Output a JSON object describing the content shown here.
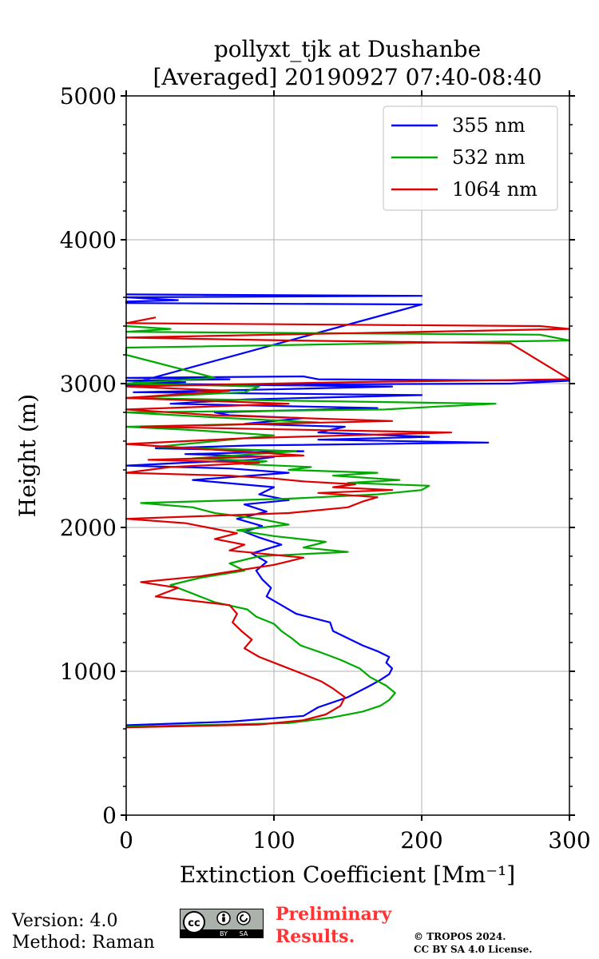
{
  "chart_data": {
    "type": "line",
    "title": "pollyxt_tjk at Dushanbe",
    "subtitle": "[Averaged] 20190927 07:40-08:40",
    "xlabel": "Extinction Coefficient [Mm⁻¹]",
    "ylabel": "Height (m)",
    "xlim": [
      0,
      300
    ],
    "ylim": [
      0,
      5000
    ],
    "xticks": [
      0,
      100,
      200,
      300
    ],
    "yticks": [
      0,
      1000,
      2000,
      3000,
      4000,
      5000
    ],
    "grid": true,
    "legend_position": "top-right",
    "series": [
      {
        "name": "355 nm",
        "color": "#0000ff",
        "x": [
          0,
          70,
          120,
          130,
          150,
          165,
          172,
          178,
          180,
          176,
          178,
          170,
          160,
          150,
          140,
          138,
          115,
          105,
          95,
          98,
          92,
          88,
          95,
          85,
          105,
          90,
          80,
          92,
          75,
          95,
          80,
          110,
          90,
          100,
          45,
          110,
          70,
          0,
          40,
          85,
          100,
          40,
          120,
          20,
          85,
          245,
          130,
          205,
          130,
          148,
          80,
          120,
          70,
          60,
          170,
          30,
          80,
          200,
          5,
          100,
          180,
          5,
          40,
          0,
          70,
          0,
          120,
          130,
          300,
          260,
          0,
          200,
          0,
          0,
          35,
          0,
          200,
          0
        ],
        "y": [
          625,
          650,
          690,
          750,
          820,
          900,
          940,
          980,
          1020,
          1060,
          1100,
          1140,
          1180,
          1230,
          1280,
          1340,
          1400,
          1460,
          1520,
          1580,
          1640,
          1700,
          1760,
          1820,
          1880,
          1930,
          1970,
          2010,
          2060,
          2110,
          2160,
          2190,
          2230,
          2280,
          2330,
          2380,
          2410,
          2430,
          2450,
          2470,
          2490,
          2510,
          2530,
          2550,
          2570,
          2590,
          2610,
          2630,
          2660,
          2700,
          2720,
          2760,
          2780,
          2800,
          2830,
          2860,
          2890,
          2920,
          2940,
          2960,
          2980,
          3000,
          3010,
          3020,
          3030,
          3040,
          3050,
          3030,
          3020,
          3000,
          2990,
          3550,
          3560,
          3570,
          3580,
          3600,
          3610,
          3620
        ]
      },
      {
        "name": "532 nm",
        "color": "#00aa00",
        "x": [
          0,
          110,
          140,
          160,
          172,
          178,
          182,
          176,
          165,
          158,
          145,
          132,
          118,
          112,
          105,
          100,
          88,
          82,
          60,
          45,
          30,
          50,
          80,
          70,
          90,
          150,
          120,
          135,
          100,
          75,
          110,
          90,
          60,
          45,
          10,
          110,
          170,
          200,
          205,
          150,
          185,
          140,
          170,
          110,
          125,
          80,
          95,
          45,
          115,
          20,
          60,
          100,
          40,
          0,
          130,
          70,
          0,
          175,
          210,
          250,
          120,
          0,
          80,
          90,
          0,
          30,
          60,
          0,
          0,
          300,
          280,
          0,
          30,
          0
        ],
        "y": [
          615,
          640,
          680,
          720,
          760,
          800,
          850,
          900,
          960,
          1020,
          1080,
          1130,
          1180,
          1230,
          1280,
          1330,
          1380,
          1430,
          1480,
          1540,
          1600,
          1650,
          1700,
          1750,
          1800,
          1830,
          1860,
          1900,
          1940,
          1980,
          2020,
          2060,
          2100,
          2140,
          2170,
          2200,
          2230,
          2260,
          2290,
          2310,
          2330,
          2360,
          2380,
          2400,
          2420,
          2440,
          2460,
          2480,
          2530,
          2560,
          2600,
          2640,
          2680,
          2700,
          2730,
          2760,
          2800,
          2820,
          2840,
          2860,
          2880,
          2900,
          2940,
          2980,
          3000,
          3020,
          3040,
          3200,
          3250,
          3300,
          3340,
          3360,
          3380,
          3400
        ]
      },
      {
        "name": "1064 nm",
        "color": "#dd0000",
        "x": [
          0,
          90,
          120,
          135,
          145,
          148,
          140,
          132,
          120,
          105,
          90,
          80,
          85,
          78,
          72,
          75,
          70,
          20,
          35,
          10,
          50,
          75,
          100,
          120,
          70,
          80,
          60,
          75,
          55,
          40,
          0,
          110,
          150,
          160,
          170,
          130,
          180,
          140,
          155,
          120,
          100,
          70,
          0,
          30,
          90,
          15,
          120,
          60,
          0,
          80,
          220,
          10,
          180,
          60,
          0,
          110,
          0,
          70,
          0,
          150,
          300,
          260,
          110,
          0,
          300,
          280,
          0,
          20
        ],
        "y": [
          610,
          630,
          660,
          700,
          760,
          820,
          880,
          930,
          980,
          1040,
          1100,
          1160,
          1220,
          1280,
          1340,
          1400,
          1460,
          1520,
          1580,
          1620,
          1660,
          1700,
          1740,
          1790,
          1840,
          1880,
          1920,
          1960,
          2000,
          2030,
          2060,
          2100,
          2140,
          2180,
          2210,
          2240,
          2260,
          2280,
          2300,
          2320,
          2340,
          2360,
          2380,
          2420,
          2450,
          2470,
          2500,
          2540,
          2580,
          2620,
          2660,
          2700,
          2740,
          2780,
          2820,
          2860,
          2900,
          2950,
          2980,
          3010,
          3030,
          3280,
          3300,
          3320,
          3380,
          3400,
          3420,
          3460
        ]
      }
    ]
  },
  "footer": {
    "version": "Version: 4.0",
    "method": "Method: Raman",
    "preliminary_line1": "Preliminary",
    "preliminary_line2": "Results.",
    "copyright_line1": "© TROPOS 2024.",
    "copyright_line2": "CC BY SA 4.0 License."
  },
  "license_badge": {
    "cc": "cc",
    "by": "BY",
    "sa": "SA"
  }
}
